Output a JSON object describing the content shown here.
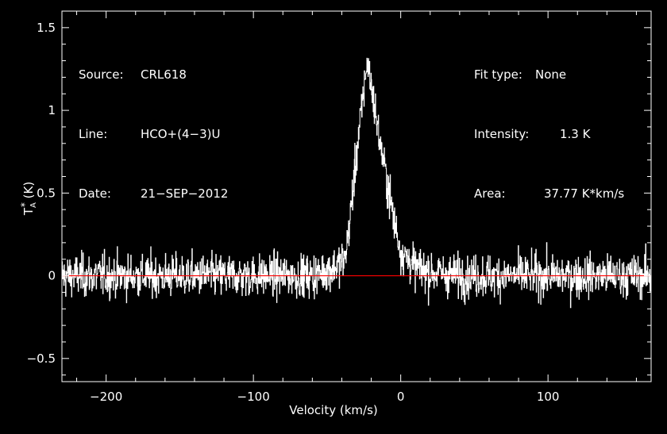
{
  "header": {
    "left": [
      {
        "key": "Source:",
        "value": "CRL618"
      },
      {
        "key": "Line:",
        "value": "HCO+(4−3)U"
      },
      {
        "key": "Date:",
        "value": "21−SEP−2012"
      }
    ],
    "right": [
      {
        "key": "Fit type:",
        "value": "None"
      },
      {
        "key": "Intensity:",
        "value": "1.3 K"
      },
      {
        "key": "Area:",
        "value": "37.77 K*km/s"
      }
    ]
  },
  "chart_data": {
    "type": "line",
    "xlabel": "Velocity (km/s)",
    "ylabel": "T",
    "ylabel_sub": "A",
    "ylabel_sup": "*",
    "ylabel_unit": "(K)",
    "xlim": [
      -230,
      170
    ],
    "ylim": [
      -0.64,
      1.6
    ],
    "xticks": [
      -200,
      -100,
      0,
      100
    ],
    "xtick_labels": [
      "−200",
      "−100",
      "0",
      "100"
    ],
    "yticks": [
      -0.5,
      0,
      0.5,
      1,
      1.5
    ],
    "ytick_labels": [
      "−0.5",
      "0",
      "0.5",
      "1",
      "1.5"
    ],
    "baseline": 0,
    "colors": {
      "spectrum": "#ffffff",
      "baseline": "#ff0000",
      "axes": "#ffffff",
      "background": "#000000"
    },
    "line_profile": {
      "peak_velocity": -22,
      "peak_intensity": 1.3,
      "noise_rms": 0.12,
      "x": [
        -230,
        -60,
        -45,
        -38,
        -35,
        -30,
        -26,
        -23,
        -20,
        -15,
        -10,
        -5,
        0,
        10,
        20,
        40,
        170
      ],
      "y": [
        0,
        0,
        0.05,
        0.1,
        0.3,
        0.75,
        1.05,
        1.3,
        1.15,
        0.85,
        0.6,
        0.35,
        0.15,
        0.05,
        0.02,
        0,
        0
      ]
    },
    "grid": false
  }
}
